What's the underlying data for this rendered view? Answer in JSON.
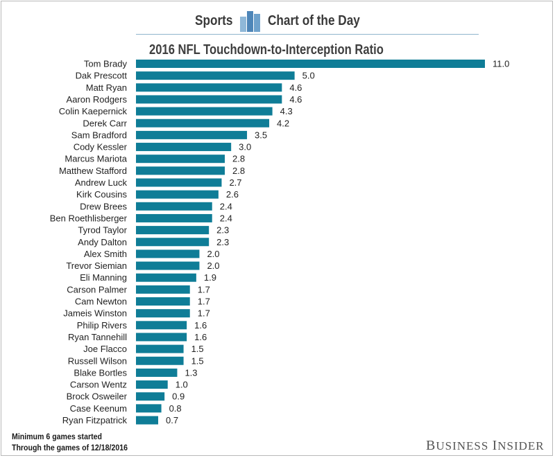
{
  "header": {
    "left_text": "Sports",
    "right_text": "Chart of the Day",
    "logo_icon": "bar-chart-icon",
    "rule_color": "#8fb5cc"
  },
  "footer": {
    "note_1": "Minimum 6 games started",
    "note_2": "Through the games of 12/18/2016",
    "brand_first": "B",
    "brand_first_rest": "USINESS",
    "brand_second": "I",
    "brand_second_rest": "NSIDER"
  },
  "chart_data": {
    "type": "bar",
    "orientation": "horizontal",
    "title": "2016 NFL Touchdown-to-Interception Ratio",
    "xlabel": "",
    "ylabel": "",
    "xlim": [
      0,
      11.0
    ],
    "grid": false,
    "bar_color": "#0f7d97",
    "categories": [
      "Tom Brady",
      "Dak Prescott",
      "Matt Ryan",
      "Aaron Rodgers",
      "Colin Kaepernick",
      "Derek Carr",
      "Sam Bradford",
      "Cody Kessler",
      "Marcus Mariota",
      "Matthew Stafford",
      "Andrew Luck",
      "Kirk Cousins",
      "Drew Brees",
      "Ben Roethlisberger",
      "Tyrod Taylor",
      "Andy Dalton",
      "Alex Smith",
      "Trevor Siemian",
      "Eli Manning",
      "Carson Palmer",
      "Cam Newton",
      "Jameis Winston",
      "Philip Rivers",
      "Ryan Tannehill",
      "Joe Flacco",
      "Russell Wilson",
      "Blake Bortles",
      "Carson Wentz",
      "Brock Osweiler",
      "Case Keenum",
      "Ryan Fitzpatrick"
    ],
    "values": [
      11.0,
      5.0,
      4.6,
      4.6,
      4.3,
      4.2,
      3.5,
      3.0,
      2.8,
      2.8,
      2.7,
      2.6,
      2.4,
      2.4,
      2.3,
      2.3,
      2.0,
      2.0,
      1.9,
      1.7,
      1.7,
      1.7,
      1.6,
      1.6,
      1.5,
      1.5,
      1.3,
      1.0,
      0.9,
      0.8,
      0.7
    ],
    "value_labels": [
      "11.0",
      "5.0",
      "4.6",
      "4.6",
      "4.3",
      "4.2",
      "3.5",
      "3.0",
      "2.8",
      "2.8",
      "2.7",
      "2.6",
      "2.4",
      "2.4",
      "2.3",
      "2.3",
      "2.0",
      "2.0",
      "1.9",
      "1.7",
      "1.7",
      "1.7",
      "1.6",
      "1.6",
      "1.5",
      "1.5",
      "1.3",
      "1.0",
      "0.9",
      "0.8",
      "0.7"
    ]
  }
}
